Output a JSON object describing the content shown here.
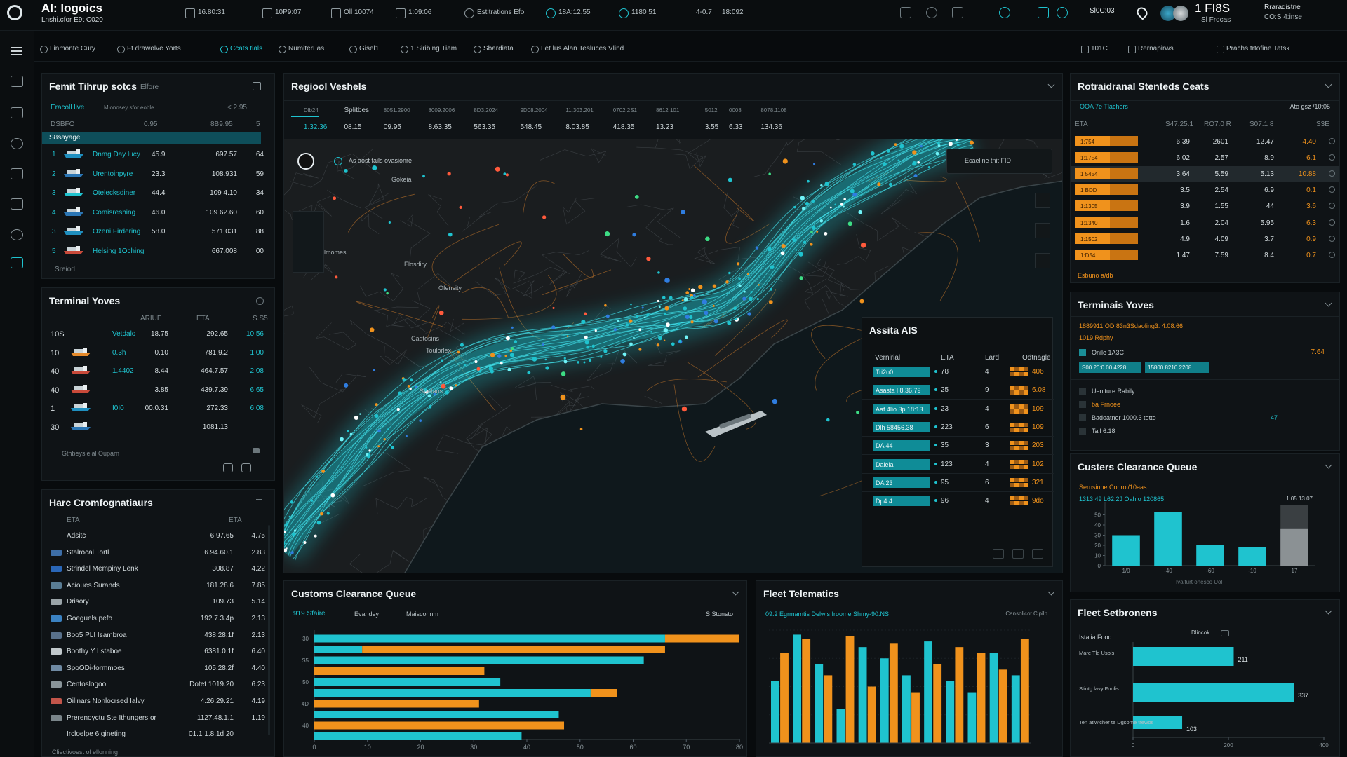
{
  "header": {
    "brand": "AI: logoics",
    "brand_sub": "Lnshi.cfor E9t C020",
    "stats": [
      "16.80:31",
      "10P9:07",
      "Oll 10074",
      "1:09:06",
      "Estitrations Efo",
      "18A:12.55",
      "1180 51",
      "4-0.7",
      "18:092"
    ],
    "code": "Sl0C:03",
    "user_stat": "1 FI8S",
    "user_sub": "Sl Frdcas",
    "account": "Rraradistne",
    "account_sub": "CO:S 4:inse"
  },
  "filters": {
    "left": [
      "Linmonte Cury",
      "Ft drawolve Yorts",
      "Ccats tials",
      "NumiterLas",
      "Gisel1",
      "1 Siribing Tiam",
      "Sbardiata",
      "Let lus Alan Tesluces Vlind"
    ],
    "right": [
      "101C",
      "Rernapirws",
      "Prachs trtofine Tatsk"
    ]
  },
  "fleet": {
    "title": "Femit Tihrup sotcs",
    "tag": "Elfore",
    "tabs": [
      "Eracoll live",
      "Mlonosey sfor eoble"
    ],
    "range": "< 2.95",
    "head": [
      "DSBFO",
      "0.95",
      "8B9.95",
      "5"
    ],
    "selected": "S8sayage",
    "rows": [
      [
        "1",
        "Dnmg Day lucy",
        "45.9",
        "697.57",
        "64"
      ],
      [
        "2",
        "Urentoinpyre",
        "23.3",
        "108.931",
        "59"
      ],
      [
        "3",
        "Otelecksdiner",
        "44.4",
        "109 4.10",
        "34"
      ],
      [
        "4",
        "Comisreshing",
        "46.0",
        "109 62.60",
        "60"
      ],
      [
        "3",
        "Ozeni Firdering",
        "58.0",
        "571.031",
        "88"
      ],
      [
        "5",
        "Helsing 1Oching",
        null,
        "667.008",
        "00"
      ]
    ],
    "footer": "Sreiod"
  },
  "terminal": {
    "title": "Terminal Yoves",
    "head": [
      "ARIUE",
      "ETA",
      "S.S5"
    ],
    "rows": [
      [
        "10S",
        "Vetdalo",
        "18.75",
        "292.65",
        "10.56"
      ],
      [
        "10",
        "0.3h",
        "0.10",
        "781.9.2",
        "1.00"
      ],
      [
        "40",
        "1.4402",
        "8.44",
        "464.7.57",
        "2.08"
      ],
      [
        "40",
        null,
        "3.85",
        "439.7.39",
        "6.65"
      ],
      [
        "1",
        "I0I0",
        "00.0.31",
        "272.33",
        "6.08"
      ],
      [
        "30",
        null,
        null,
        "1081.13",
        null
      ]
    ],
    "footer": "Gthbeyslelal Ouparn"
  },
  "cargo": {
    "title": "Harc Cromfognatiaurs",
    "head": [
      "ETA",
      "ETA"
    ],
    "rows": [
      [
        "Adsitc",
        "6.97.65",
        "4.75"
      ],
      [
        "Stalrocal Tortl",
        "6.94.60.1",
        "2.83"
      ],
      [
        "Strindel Mempiny Lenk",
        "308.87",
        "4.22"
      ],
      [
        "Acioues Surands",
        "181.28.6",
        "7.85"
      ],
      [
        "Drisory",
        "109.73",
        "5.14"
      ],
      [
        "Goeguels pefo",
        "192.7.3.4p",
        "2.13"
      ],
      [
        "Boo5 PLI Isambroa",
        "438.28.1f",
        "2.13"
      ],
      [
        "Boothy Y Lstaboe",
        "6381.0.1f",
        "6.40"
      ],
      [
        "SpoODi-formmoes",
        "105.28.2f",
        "4.40"
      ],
      [
        "Centoslogoo",
        "Dotet 1019.20",
        "6.23"
      ],
      [
        "Oilinars Nonlocrsed Ialvy",
        "4.26.29.21",
        "4.19"
      ],
      [
        "Prerenoyctu Ste Ithungers or",
        "1127.48.1.1",
        "1.19"
      ],
      [
        "Ircloelpe 6 gineting",
        "01.1 1.8.1d 20",
        null
      ]
    ],
    "footer": "Cliectivoest ol ellonning"
  },
  "map": {
    "title": "Regiool Veshels",
    "tabs": [
      "Dlb24",
      "Splitbes",
      "8051.2900",
      "8009.2006",
      "8D3.2024",
      "9D08.2004",
      "11.303.201",
      "0702.2S1",
      "8612 101",
      "5012",
      "0008",
      "8078.1108"
    ],
    "values": [
      "1.32.36",
      "08.15",
      "09.95",
      "8.63.35",
      "563.35",
      "548.45",
      "8.03.85",
      "418.35",
      "13.23",
      "3.55",
      "6.33",
      "134.36"
    ],
    "search": "As aost fails ovasionre",
    "legend": "Ecaeline tnit  FID",
    "places": [
      "Gokeia",
      "Elosdiry",
      "Ofensity",
      "Cadtosins",
      "Toulorlex",
      "Spefaos",
      "Silmomes"
    ],
    "ais": {
      "title": "Assita AIS",
      "head": [
        "Vernirial",
        "ETA",
        "Lard",
        "Odtnagle"
      ],
      "rows": [
        [
          "Tri2o0",
          "78",
          "4",
          "406"
        ],
        [
          "Asasta l 8.36.79",
          "25",
          "9",
          "6.08"
        ],
        [
          "Aaf 4lio 3p 18:13",
          "23",
          "4",
          "109"
        ],
        [
          "Dlh 58456.38",
          "223",
          "6",
          "109"
        ],
        [
          "DA 44",
          "35",
          "3",
          "203"
        ],
        [
          "Daleia",
          "123",
          "4",
          "102"
        ],
        [
          "DA 23",
          "95",
          "6",
          "321"
        ],
        [
          "Dp4 4",
          "96",
          "4",
          "9do"
        ]
      ]
    }
  },
  "customs": {
    "title": "Customs Clearance Queue",
    "subs": [
      "919 Sfaire",
      "Evandey",
      "Maisconnm"
    ],
    "legend": "S Stonsto",
    "categories": [
      "30",
      null,
      "S5",
      null,
      "50",
      null,
      "4D",
      null,
      "40",
      null
    ],
    "series": [
      {
        "color": "#1fc3cf",
        "values": [
          66,
          9,
          62,
          0,
          35,
          52,
          0,
          46,
          0,
          39
        ]
      },
      {
        "color": "#f0921c",
        "values": [
          14,
          57,
          0,
          32,
          0,
          5,
          31,
          0,
          47,
          0
        ]
      }
    ],
    "xlim": [
      0,
      80
    ],
    "xticks": [
      0,
      10,
      20,
      30,
      40,
      50,
      60,
      70,
      80
    ]
  },
  "telematics": {
    "title": "Fleet Telematics",
    "sub": "09.2 Egrmamtis Delwis Iroome Shmy-90.NS",
    "note": "Cansolicot Cipilb",
    "series": [
      {
        "color": "#1fc3cf",
        "values": [
          55,
          96,
          70,
          30,
          85,
          75,
          60,
          90,
          55,
          45,
          80,
          60
        ]
      },
      {
        "color": "#f0921c",
        "values": [
          80,
          92,
          60,
          95,
          50,
          88,
          45,
          70,
          85,
          80,
          65,
          92
        ]
      }
    ],
    "ylim": [
      0,
      100
    ]
  },
  "rtable": {
    "title": "Rotraidranal Stenteds Ceats",
    "sub": "OOA 7e Tlachors",
    "sub_right": "Ato gsz /10t05",
    "head": [
      "ETA",
      "S47.25.1",
      "RO7.0 R",
      "S07.1 8",
      "S3E"
    ],
    "rows": [
      [
        "1:754",
        "6.39",
        "2601",
        "12.47",
        "4.40"
      ],
      [
        "1:1754",
        "6.02",
        "2.57",
        "8.9",
        "6.1"
      ],
      [
        "1 5454",
        "3.64",
        "5.59",
        "5.13",
        "10.88"
      ],
      [
        "1 BDD",
        "3.5",
        "2.54",
        "6.9",
        "0.1"
      ],
      [
        "1:1305",
        "3.9",
        "1.55",
        "44",
        "3.6"
      ],
      [
        "1:1340",
        "1.6",
        "2.04",
        "5.95",
        "6.3"
      ],
      [
        "1:1502",
        "4.9",
        "4.09",
        "3.7",
        "0.9"
      ],
      [
        "1:D54",
        "1.47",
        "7.59",
        "8.4",
        "0.7"
      ]
    ],
    "footer": "Esbuno a/db"
  },
  "terminal2": {
    "title": "Terminais Yoves",
    "line1": "1889911 OD 83n3Sdaoling3: 4.08.66",
    "line2": "1019 Rdphy",
    "items": [
      "Onile 1A3C",
      "Ueniture Rabily",
      "ba Frnoee",
      "Badoatner 1000.3 totto",
      "Tall 6.18"
    ],
    "value1": "7.64",
    "value2": "47",
    "chips": [
      "S00 20:0.00 4228",
      "15800.8210.2208"
    ]
  },
  "custers": {
    "title": "Custers Clearance Queue",
    "sub": "Sernsinhe Conrol/10aas",
    "sub2": "1313 49 L62.2J Oahio 120865",
    "note": "1.05 13.07",
    "categories": [
      "1/0",
      "-40",
      "-60",
      "-10",
      "17"
    ],
    "series": [
      {
        "color": "#1fc3cf",
        "values": [
          30,
          53,
          20,
          18,
          null
        ]
      },
      {
        "color": "#3a3f42",
        "values": [
          null,
          null,
          null,
          null,
          60
        ]
      },
      {
        "color": "#8b9194",
        "values": [
          null,
          null,
          null,
          null,
          36
        ]
      }
    ],
    "ylim": [
      0,
      60
    ],
    "yticks": [
      0,
      10,
      20,
      30,
      40,
      50
    ],
    "footer": "Ivalfurt onesco Uol"
  },
  "setbronens": {
    "title": "Fleet Setbronens",
    "legend": "Dlincok",
    "header": "Istalia Food",
    "categories": [
      "Mare Tle Usbls",
      "Stintg lavy Foolis",
      "Ten atlwicher te Dgsome trewos"
    ],
    "values": [
      211,
      337,
      103
    ],
    "color": "#1fc3cf",
    "xlim": [
      0,
      400
    ],
    "xticks": [
      0,
      200,
      400
    ]
  }
}
